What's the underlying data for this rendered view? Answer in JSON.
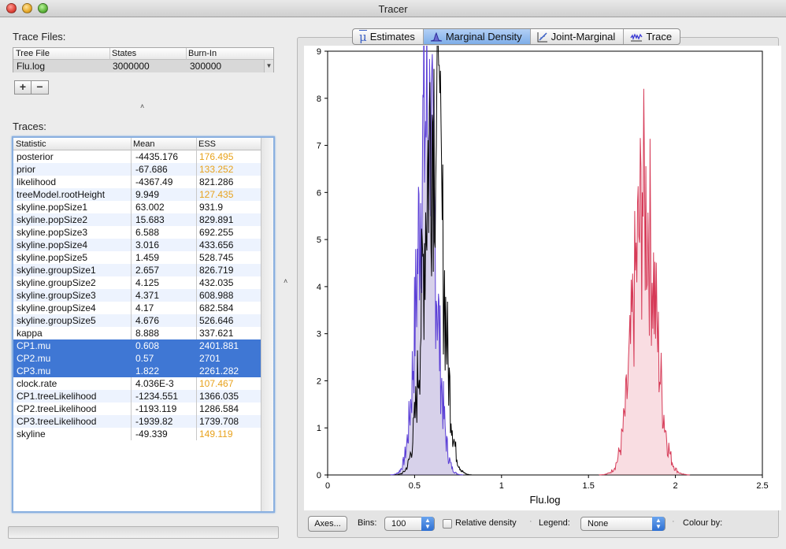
{
  "window": {
    "title": "Tracer"
  },
  "trace_files": {
    "label": "Trace Files:",
    "columns": [
      "Tree File",
      "States",
      "Burn-In"
    ],
    "rows": [
      {
        "file": "Flu.log",
        "states": "3000000",
        "burnin": "300000"
      }
    ],
    "add_label": "+",
    "remove_label": "−"
  },
  "traces": {
    "label": "Traces:",
    "columns": [
      "Statistic",
      "Mean",
      "ESS"
    ],
    "rows": [
      {
        "stat": "posterior",
        "mean": "-4435.176",
        "ess": "176.495",
        "warn": true,
        "selected": false
      },
      {
        "stat": "prior",
        "mean": "-67.686",
        "ess": "133.252",
        "warn": true,
        "selected": false
      },
      {
        "stat": "likelihood",
        "mean": "-4367.49",
        "ess": "821.286",
        "warn": false,
        "selected": false
      },
      {
        "stat": "treeModel.rootHeight",
        "mean": "9.949",
        "ess": "127.435",
        "warn": true,
        "selected": false
      },
      {
        "stat": "skyline.popSize1",
        "mean": "63.002",
        "ess": "931.9",
        "warn": false,
        "selected": false
      },
      {
        "stat": "skyline.popSize2",
        "mean": "15.683",
        "ess": "829.891",
        "warn": false,
        "selected": false
      },
      {
        "stat": "skyline.popSize3",
        "mean": "6.588",
        "ess": "692.255",
        "warn": false,
        "selected": false
      },
      {
        "stat": "skyline.popSize4",
        "mean": "3.016",
        "ess": "433.656",
        "warn": false,
        "selected": false
      },
      {
        "stat": "skyline.popSize5",
        "mean": "1.459",
        "ess": "528.745",
        "warn": false,
        "selected": false
      },
      {
        "stat": "skyline.groupSize1",
        "mean": "2.657",
        "ess": "826.719",
        "warn": false,
        "selected": false
      },
      {
        "stat": "skyline.groupSize2",
        "mean": "4.125",
        "ess": "432.035",
        "warn": false,
        "selected": false
      },
      {
        "stat": "skyline.groupSize3",
        "mean": "4.371",
        "ess": "608.988",
        "warn": false,
        "selected": false
      },
      {
        "stat": "skyline.groupSize4",
        "mean": "4.17",
        "ess": "682.584",
        "warn": false,
        "selected": false
      },
      {
        "stat": "skyline.groupSize5",
        "mean": "4.676",
        "ess": "526.646",
        "warn": false,
        "selected": false
      },
      {
        "stat": "kappa",
        "mean": "8.888",
        "ess": "337.621",
        "warn": false,
        "selected": false
      },
      {
        "stat": "CP1.mu",
        "mean": "0.608",
        "ess": "2401.881",
        "warn": false,
        "selected": true
      },
      {
        "stat": "CP2.mu",
        "mean": "0.57",
        "ess": "2701",
        "warn": false,
        "selected": true
      },
      {
        "stat": "CP3.mu",
        "mean": "1.822",
        "ess": "2261.282",
        "warn": false,
        "selected": true
      },
      {
        "stat": "clock.rate",
        "mean": "4.036E-3",
        "ess": "107.467",
        "warn": true,
        "selected": false
      },
      {
        "stat": "CP1.treeLikelihood",
        "mean": "-1234.551",
        "ess": "1366.035",
        "warn": false,
        "selected": false
      },
      {
        "stat": "CP2.treeLikelihood",
        "mean": "-1193.119",
        "ess": "1286.584",
        "warn": false,
        "selected": false
      },
      {
        "stat": "CP3.treeLikelihood",
        "mean": "-1939.82",
        "ess": "1739.708",
        "warn": false,
        "selected": false
      },
      {
        "stat": "skyline",
        "mean": "-49.339",
        "ess": "149.119",
        "warn": true,
        "selected": false
      }
    ]
  },
  "tabs": [
    {
      "label": "Estimates",
      "icon": "mu-icon",
      "active": false
    },
    {
      "label": "Marginal Density",
      "icon": "density-icon",
      "active": true
    },
    {
      "label": "Joint-Marginal",
      "icon": "scatter-icon",
      "active": false
    },
    {
      "label": "Trace",
      "icon": "trace-icon",
      "active": false
    }
  ],
  "controls": {
    "axes_button": "Axes...",
    "bins_label": "Bins:",
    "bins_value": "100",
    "relative_density_label": "Relative density",
    "relative_density_checked": false,
    "legend_label": "Legend:",
    "legend_value": "None",
    "colour_by_label": "Colour by:"
  },
  "colors": {
    "selection": "#3f77d4",
    "ess_warning": "#e8a21c",
    "series_cp1": "#000000",
    "series_cp2": "#5b3fd6",
    "series_cp3": "#d63a57"
  },
  "chart_data": {
    "type": "area",
    "xlabel": "Flu.log",
    "ylabel": "",
    "xlim": [
      0,
      2.5
    ],
    "ylim": [
      0,
      9
    ],
    "xticks": [
      "0",
      "0.5",
      "1",
      "1.5",
      "2",
      "2.5"
    ],
    "yticks": [
      "0",
      "1",
      "2",
      "3",
      "4",
      "5",
      "6",
      "7",
      "8",
      "9"
    ],
    "grid": false,
    "series": [
      {
        "color": "#000000",
        "fill": "none",
        "mean": 0.608,
        "sd": 0.055,
        "peak": 7.8,
        "spike_x": 0.64,
        "spike_y": 8.7
      },
      {
        "color": "#5b3fd6",
        "fill": "rgba(110,90,180,0.28)",
        "mean": 0.57,
        "sd": 0.052,
        "peak": 7.6,
        "spike_x": 0.59,
        "spike_y": 7.4
      },
      {
        "color": "#d63a57",
        "fill": "rgba(230,120,140,0.25)",
        "mean": 1.822,
        "sd": 0.065,
        "peak": 5.7,
        "spike_x": 1.81,
        "spike_y": 6.0
      }
    ]
  }
}
